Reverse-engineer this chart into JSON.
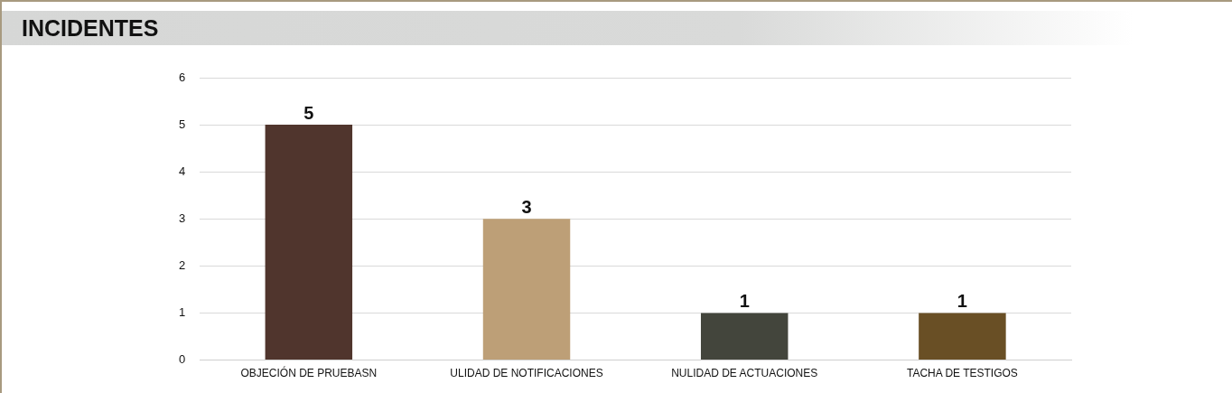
{
  "chart_data": {
    "type": "bar",
    "title": "INCIDENTES",
    "categories": [
      "OBJECIÓN DE PRUEBASN",
      "ULIDAD DE NOTIFICACIONES",
      "NULIDAD DE ACTUACIONES",
      "TACHA DE TESTIGOS"
    ],
    "values": [
      5,
      3,
      1,
      1
    ],
    "colors": [
      "#50352d",
      "#bd9f77",
      "#43453c",
      "#694f25"
    ],
    "ylim": [
      0,
      6
    ],
    "yticks": [
      0,
      1,
      2,
      3,
      4,
      5,
      6
    ],
    "grid": "y",
    "data_labels": true,
    "legend": false
  }
}
